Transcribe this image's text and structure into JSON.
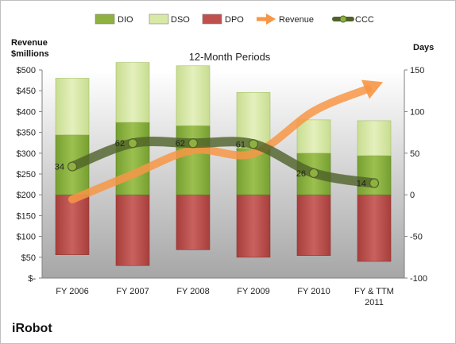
{
  "chart_data": {
    "type": "bar",
    "title": "12-Month Periods",
    "company": "iRobot",
    "left_axis": {
      "label_line1": "Revenue",
      "label_line2": "$millions",
      "range": [
        0,
        500
      ],
      "ticks": [
        "$-",
        "$50",
        "$100",
        "$150",
        "$200",
        "$250",
        "$300",
        "$350",
        "$400",
        "$450",
        "$500"
      ]
    },
    "right_axis": {
      "label": "Days",
      "range": [
        -100,
        150
      ],
      "ticks": [
        "-100",
        "-50",
        "0",
        "50",
        "100",
        "150"
      ]
    },
    "categories": [
      [
        "FY 2006"
      ],
      [
        "FY 2007"
      ],
      [
        "FY 2008"
      ],
      [
        "FY 2009"
      ],
      [
        "FY 2010"
      ],
      [
        "FY & TTM",
        "2011"
      ]
    ],
    "series": [
      {
        "name": "DIO",
        "color": "#8fb141",
        "values": [
          72,
          87,
          83,
          56,
          50,
          47
        ]
      },
      {
        "name": "DSO",
        "color": "#d8e9a6",
        "values": [
          68,
          72,
          72,
          67,
          40,
          42
        ]
      },
      {
        "name": "DPO",
        "color": "#c0504d",
        "values": [
          -72,
          -85,
          -66,
          -75,
          -73,
          -80
        ]
      },
      {
        "name": "Revenue",
        "color": "#f79646",
        "values": [
          189,
          249,
          307,
          299,
          401,
          462
        ]
      },
      {
        "name": "CCC",
        "color": "#4f6228",
        "values": [
          34,
          62,
          62,
          61,
          26,
          14
        ]
      }
    ],
    "ccc_labels": [
      "34",
      "62",
      "62",
      "61",
      "26",
      "14"
    ],
    "grid": false,
    "legend_position": "top"
  }
}
